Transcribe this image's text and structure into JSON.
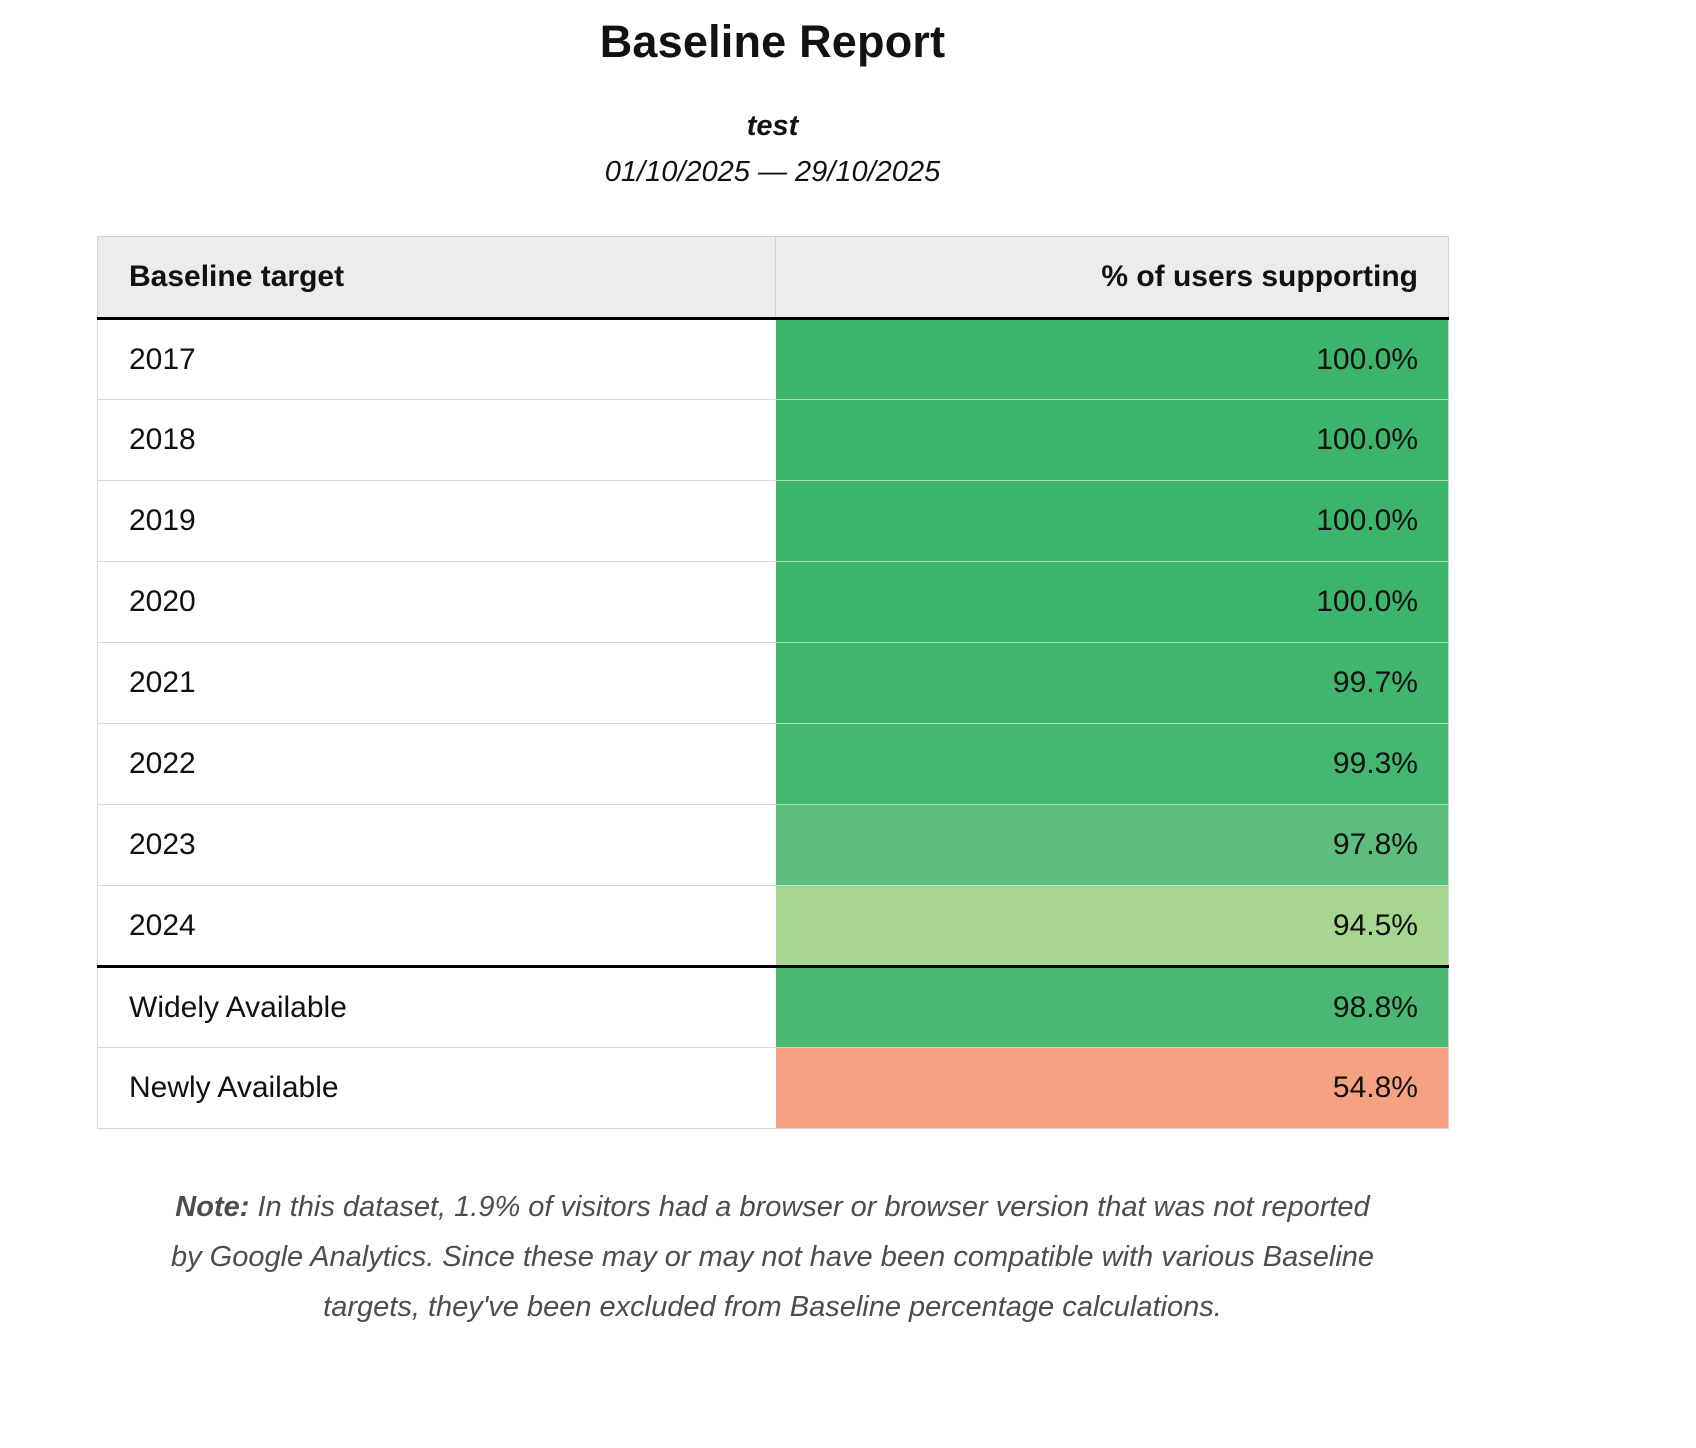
{
  "report": {
    "title": "Baseline Report",
    "subtitle": "test",
    "date_range": "01/10/2025 — 29/10/2025"
  },
  "table": {
    "headers": {
      "target": "Baseline target",
      "percent": "% of users supporting"
    },
    "rows": [
      {
        "label": "2017",
        "value": "100.0%",
        "color": "#3cb46c",
        "separator_above": false
      },
      {
        "label": "2018",
        "value": "100.0%",
        "color": "#3cb46c",
        "separator_above": false
      },
      {
        "label": "2019",
        "value": "100.0%",
        "color": "#3cb46c",
        "separator_above": false
      },
      {
        "label": "2020",
        "value": "100.0%",
        "color": "#3cb46c",
        "separator_above": false
      },
      {
        "label": "2021",
        "value": "99.7%",
        "color": "#3fb56e",
        "separator_above": false
      },
      {
        "label": "2022",
        "value": "99.3%",
        "color": "#44b770",
        "separator_above": false
      },
      {
        "label": "2023",
        "value": "97.8%",
        "color": "#5cbd7c",
        "separator_above": false
      },
      {
        "label": "2024",
        "value": "94.5%",
        "color": "#a7d690",
        "separator_above": false
      },
      {
        "label": "Widely Available",
        "value": "98.8%",
        "color": "#4ab873",
        "separator_above": true
      },
      {
        "label": "Newly Available",
        "value": "54.8%",
        "color": "#f7a183",
        "separator_above": false
      }
    ]
  },
  "note": {
    "label": "Note:",
    "text": "In this dataset, 1.9% of visitors had a browser or browser version that was not reported by Google Analytics. Since these may or may not have been compatible with various Baseline targets, they've been excluded from Baseline percentage calculations."
  },
  "colors": {
    "header_background": "#ececec",
    "separator": "#000000",
    "full_support_green": "#3cb46c",
    "partial_support_light_green": "#a7d690",
    "low_support_salmon": "#f7a183"
  },
  "chart_data": {
    "type": "table",
    "title": "Baseline Report",
    "subtitle": "test",
    "date_range": "01/10/2025 — 29/10/2025",
    "columns": [
      "Baseline target",
      "% of users supporting"
    ],
    "categories": [
      "2017",
      "2018",
      "2019",
      "2020",
      "2021",
      "2022",
      "2023",
      "2024",
      "Widely Available",
      "Newly Available"
    ],
    "values": [
      100.0,
      100.0,
      100.0,
      100.0,
      99.7,
      99.3,
      97.8,
      94.5,
      98.8,
      54.8
    ],
    "ylabel": "% of users supporting",
    "value_unit": "%",
    "legend_position": "none",
    "grid": false
  }
}
